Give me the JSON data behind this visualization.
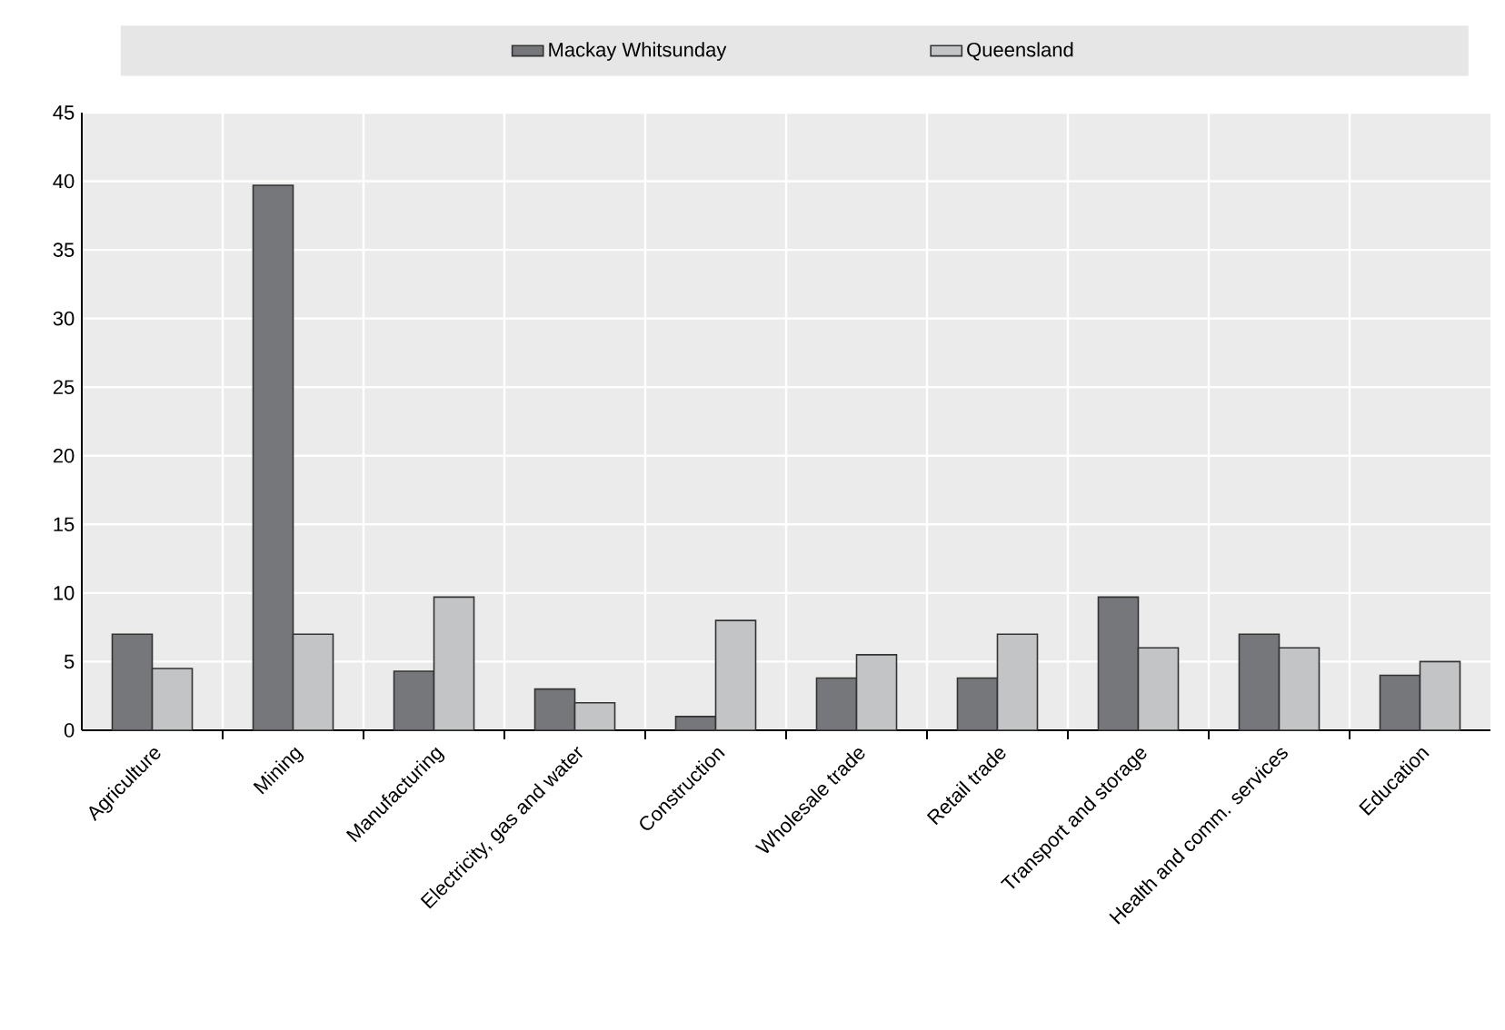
{
  "chart_data": {
    "type": "bar",
    "categories": [
      "Agriculture",
      "Mining",
      "Manufacturing",
      "Electricity, gas and water",
      "Construction",
      "Wholesale trade",
      "Retail trade",
      "Transport and storage",
      "Health and comm. services",
      "Education"
    ],
    "series": [
      {
        "name": "Mackay Whitsunday",
        "color": "#76777b",
        "values": [
          7,
          39.7,
          4.3,
          3,
          1,
          3.8,
          3.8,
          9.7,
          7,
          4
        ]
      },
      {
        "name": "Queensland",
        "color": "#c3c4c6",
        "values": [
          4.5,
          7,
          9.7,
          2,
          8,
          5.5,
          7,
          6,
          6,
          5
        ]
      }
    ],
    "ylim": [
      0,
      45
    ],
    "yticks": [
      0,
      5,
      10,
      15,
      20,
      25,
      30,
      35,
      40,
      45
    ],
    "grid": true,
    "legend": "top"
  }
}
